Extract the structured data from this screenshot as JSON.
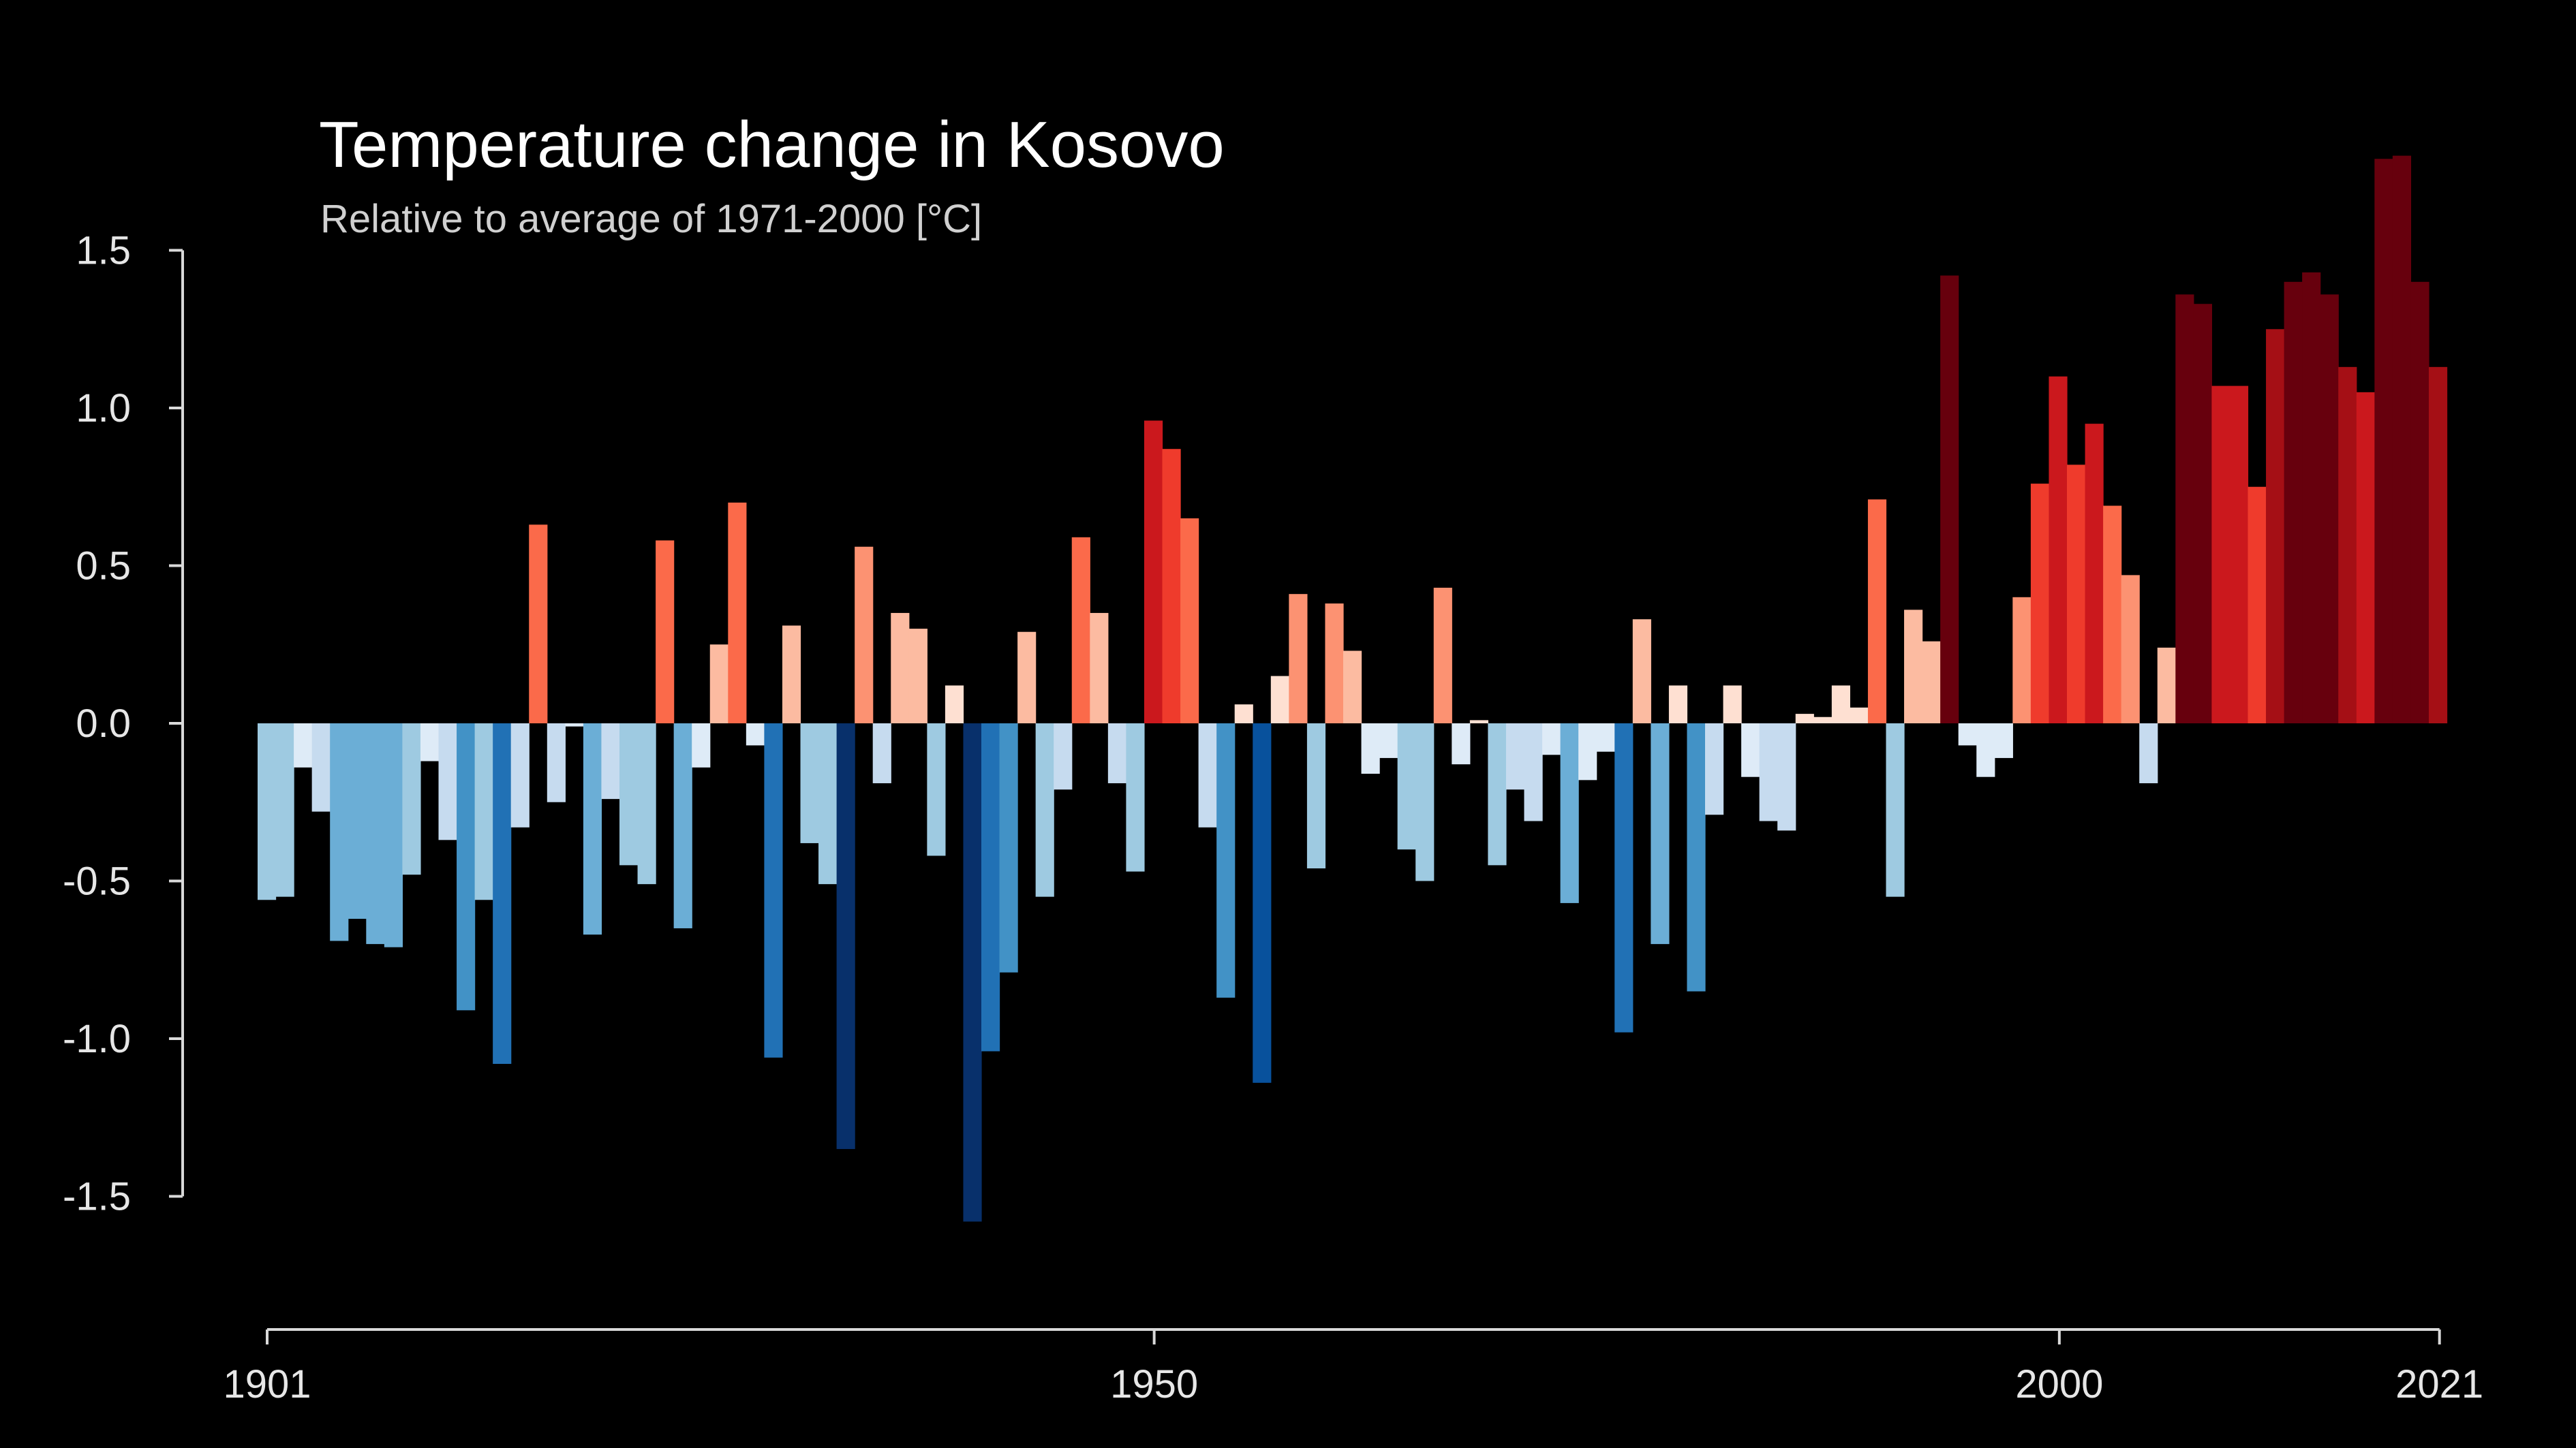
{
  "chart_data": {
    "type": "bar",
    "title": "Temperature change in Kosovo",
    "subtitle": "Relative to average of 1971-2000  [°C]",
    "xlabel": "",
    "ylabel": "",
    "x_start": 1901,
    "x_end": 2021,
    "x_ticks": [
      1901,
      1950,
      2000,
      2021
    ],
    "y_ticks": [
      1.5,
      1.0,
      0.5,
      0.0,
      -0.5,
      -1.0,
      -1.5
    ],
    "ylim": [
      -1.6,
      1.8
    ],
    "grid": false,
    "legend": "none",
    "years": [
      1901,
      1902,
      1903,
      1904,
      1905,
      1906,
      1907,
      1908,
      1909,
      1910,
      1911,
      1912,
      1913,
      1914,
      1915,
      1916,
      1917,
      1918,
      1919,
      1920,
      1921,
      1922,
      1923,
      1924,
      1925,
      1926,
      1927,
      1928,
      1929,
      1930,
      1931,
      1932,
      1933,
      1934,
      1935,
      1936,
      1937,
      1938,
      1939,
      1940,
      1941,
      1942,
      1943,
      1944,
      1945,
      1946,
      1947,
      1948,
      1949,
      1950,
      1951,
      1952,
      1953,
      1954,
      1955,
      1956,
      1957,
      1958,
      1959,
      1960,
      1961,
      1962,
      1963,
      1964,
      1965,
      1966,
      1967,
      1968,
      1969,
      1970,
      1971,
      1972,
      1973,
      1974,
      1975,
      1976,
      1977,
      1978,
      1979,
      1980,
      1981,
      1982,
      1983,
      1984,
      1985,
      1986,
      1987,
      1988,
      1989,
      1990,
      1991,
      1992,
      1993,
      1994,
      1995,
      1996,
      1997,
      1998,
      1999,
      2000,
      2001,
      2002,
      2003,
      2004,
      2005,
      2006,
      2007,
      2008,
      2009,
      2010,
      2011,
      2012,
      2013,
      2014,
      2015,
      2016,
      2017,
      2018,
      2019,
      2020,
      2021
    ],
    "values": [
      -0.56,
      -0.55,
      -0.14,
      -0.28,
      -0.69,
      -0.62,
      -0.7,
      -0.71,
      -0.48,
      -0.12,
      -0.37,
      -0.91,
      -0.56,
      -1.08,
      -0.33,
      0.63,
      -0.25,
      -0.01,
      -0.67,
      -0.24,
      -0.45,
      -0.51,
      0.58,
      -0.65,
      -0.14,
      0.25,
      0.7,
      -0.07,
      -1.06,
      0.31,
      -0.38,
      -0.51,
      -1.35,
      0.56,
      -0.19,
      0.35,
      0.3,
      -0.42,
      0.12,
      -1.58,
      -1.04,
      -0.79,
      0.29,
      -0.55,
      -0.21,
      0.59,
      0.35,
      -0.19,
      -0.47,
      0.96,
      0.87,
      0.65,
      -0.33,
      -0.87,
      0.06,
      -1.14,
      0.15,
      0.41,
      -0.46,
      0.38,
      0.23,
      -0.16,
      -0.11,
      -0.4,
      -0.5,
      0.43,
      -0.13,
      0.01,
      -0.45,
      -0.21,
      -0.31,
      -0.1,
      -0.57,
      -0.18,
      -0.09,
      -0.98,
      0.33,
      -0.7,
      0.12,
      -0.85,
      -0.29,
      0.12,
      -0.17,
      -0.31,
      -0.34,
      0.03,
      0.02,
      0.12,
      0.05,
      0.71,
      -0.55,
      0.36,
      0.26,
      1.42,
      -0.07,
      -0.17,
      -0.11,
      0.4,
      0.76,
      1.1,
      0.82,
      0.95,
      0.69,
      0.47,
      -0.19,
      0.24,
      1.36,
      1.33,
      1.07,
      1.07,
      0.75,
      1.25,
      1.4,
      1.43,
      1.36,
      1.13,
      1.05,
      1.79,
      1.8,
      1.4,
      1.13
    ]
  }
}
